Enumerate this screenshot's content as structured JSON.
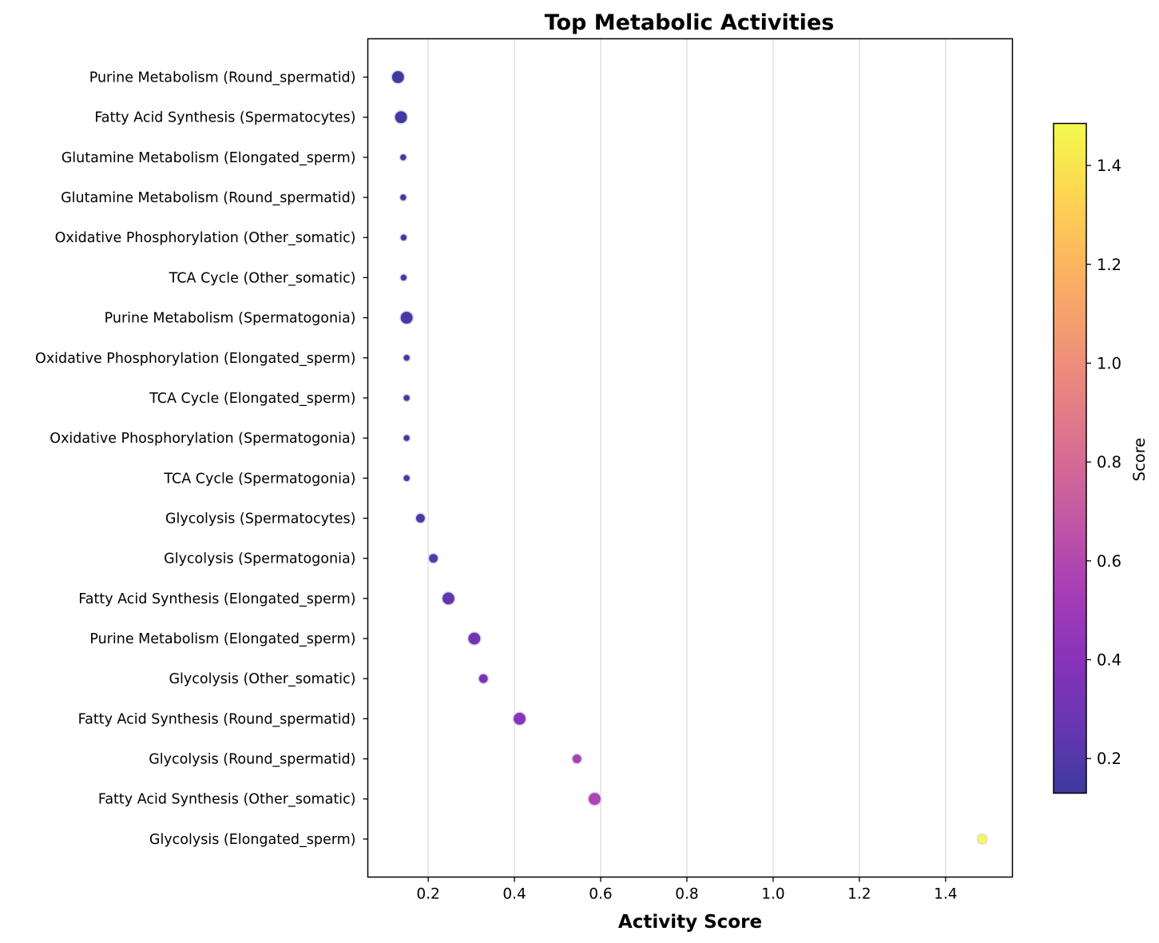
{
  "chart_data": {
    "type": "scatter",
    "title": "Top Metabolic Activities",
    "xlabel": "Activity Score",
    "ylabel": "",
    "xlim": [
      0.06,
      1.555
    ],
    "xticks": [
      0.2,
      0.4,
      0.6,
      0.8,
      1.0,
      1.2,
      1.4
    ],
    "xtick_labels": [
      "0.2",
      "0.4",
      "0.6",
      "0.8",
      "1.0",
      "1.2",
      "1.4"
    ],
    "grid": "vertical",
    "colormap": "plasma",
    "colorbar": {
      "label": "Score",
      "range": [
        0.13,
        1.485
      ],
      "ticks": [
        0.2,
        0.4,
        0.6,
        0.8,
        1.0,
        1.2,
        1.4
      ],
      "tick_labels": [
        "0.2",
        "0.4",
        "0.6",
        "0.8",
        "1.0",
        "1.2",
        "1.4"
      ]
    },
    "points": [
      {
        "label": "Purine Metabolism (Round_spermatid)",
        "x": 0.13,
        "size": "large"
      },
      {
        "label": "Fatty Acid Synthesis (Spermatocytes)",
        "x": 0.137,
        "size": "large"
      },
      {
        "label": "Glutamine Metabolism (Elongated_sperm)",
        "x": 0.142,
        "size": "small"
      },
      {
        "label": "Glutamine Metabolism (Round_spermatid)",
        "x": 0.142,
        "size": "small"
      },
      {
        "label": "Oxidative Phosphorylation (Other_somatic)",
        "x": 0.143,
        "size": "small"
      },
      {
        "label": "TCA Cycle (Other_somatic)",
        "x": 0.143,
        "size": "small"
      },
      {
        "label": "Purine Metabolism (Spermatogonia)",
        "x": 0.15,
        "size": "large"
      },
      {
        "label": "Oxidative Phosphorylation (Elongated_sperm)",
        "x": 0.15,
        "size": "small"
      },
      {
        "label": "TCA Cycle (Elongated_sperm)",
        "x": 0.15,
        "size": "small"
      },
      {
        "label": "Oxidative Phosphorylation (Spermatogonia)",
        "x": 0.15,
        "size": "small"
      },
      {
        "label": "TCA Cycle (Spermatogonia)",
        "x": 0.15,
        "size": "small"
      },
      {
        "label": "Glycolysis (Spermatocytes)",
        "x": 0.182,
        "size": "medium"
      },
      {
        "label": "Glycolysis (Spermatogonia)",
        "x": 0.212,
        "size": "medium"
      },
      {
        "label": "Fatty Acid Synthesis (Elongated_sperm)",
        "x": 0.247,
        "size": "large"
      },
      {
        "label": "Purine Metabolism (Elongated_sperm)",
        "x": 0.307,
        "size": "large"
      },
      {
        "label": "Glycolysis (Other_somatic)",
        "x": 0.328,
        "size": "medium"
      },
      {
        "label": "Fatty Acid Synthesis (Round_spermatid)",
        "x": 0.412,
        "size": "large"
      },
      {
        "label": "Glycolysis (Round_spermatid)",
        "x": 0.545,
        "size": "medium"
      },
      {
        "label": "Fatty Acid Synthesis (Other_somatic)",
        "x": 0.586,
        "size": "large"
      },
      {
        "label": "Glycolysis (Elongated_sperm)",
        "x": 1.485,
        "size": "medium"
      }
    ]
  }
}
